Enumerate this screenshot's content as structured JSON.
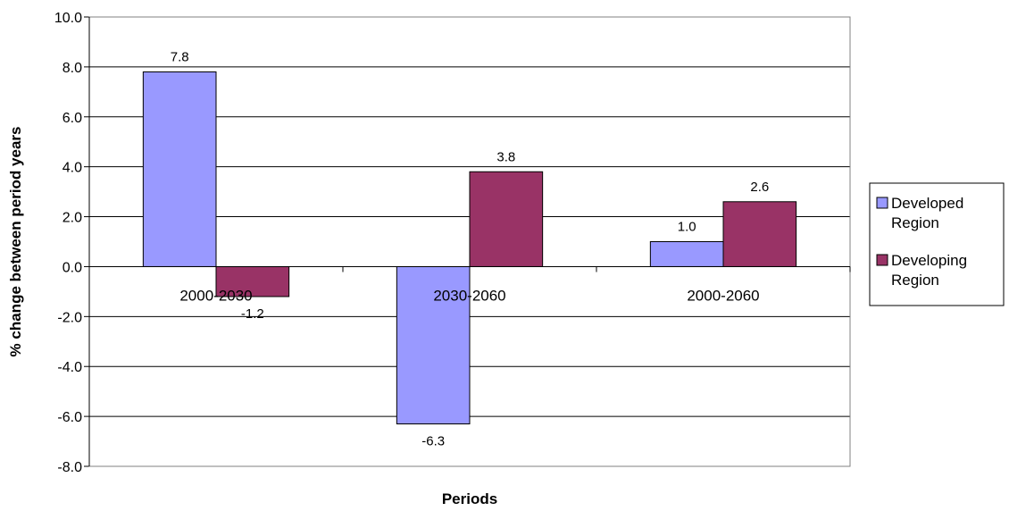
{
  "chart_data": {
    "type": "bar",
    "title": "",
    "xlabel": "Periods",
    "ylabel": "% change between period years",
    "categories": [
      "2000-2030",
      "2030-2060",
      "2000-2060"
    ],
    "series": [
      {
        "name": "Developed Region",
        "values": [
          7.8,
          -6.3,
          1.0
        ],
        "labels": [
          "7.8",
          "-6.3",
          "1.0"
        ],
        "color": "#9999ff"
      },
      {
        "name": "Developing Region",
        "values": [
          -1.2,
          3.8,
          2.6
        ],
        "labels": [
          "-1.2",
          "3.8",
          "2.6"
        ],
        "color": "#993366"
      }
    ],
    "ylim": [
      -8.0,
      10.0
    ],
    "yticks": [
      "10.0",
      "8.0",
      "6.0",
      "4.0",
      "2.0",
      "0.0",
      "-2.0",
      "-4.0",
      "-6.0",
      "-8.0"
    ],
    "grid": true,
    "legend": "right",
    "legend_entries": [
      {
        "line1": "Developed",
        "line2": "Region"
      },
      {
        "line1": "Developing",
        "line2": "Region"
      }
    ]
  }
}
